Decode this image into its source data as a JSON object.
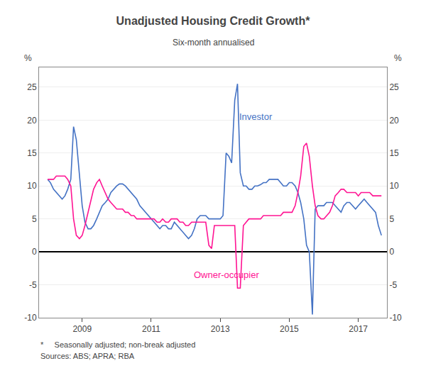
{
  "chart_data": {
    "type": "line",
    "title": "Unadjusted Housing Credit Growth*",
    "subtitle": "Six-month annualised",
    "ylabel": "%",
    "y2label": "%",
    "footnotes": [
      "*     Seasonally adjusted; non-break adjusted",
      "Sources: ABS; APRA; RBA"
    ],
    "xlim": [
      2007.75,
      2017.83
    ],
    "xticks": [
      2009,
      2011,
      2013,
      2015,
      2017
    ],
    "ylim": [
      -10,
      28
    ],
    "yticks": [
      -10,
      -5,
      0,
      5,
      10,
      15,
      20,
      25
    ],
    "y2lim": [
      -10,
      28
    ],
    "y2ticks": [
      -10,
      -5,
      0,
      5,
      10,
      15,
      20,
      25
    ],
    "grid": true,
    "x": [
      2008.0,
      2008.08,
      2008.17,
      2008.25,
      2008.33,
      2008.42,
      2008.5,
      2008.58,
      2008.67,
      2008.75,
      2008.83,
      2008.92,
      2009.0,
      2009.08,
      2009.17,
      2009.25,
      2009.33,
      2009.42,
      2009.5,
      2009.58,
      2009.67,
      2009.75,
      2009.83,
      2009.92,
      2010.0,
      2010.08,
      2010.17,
      2010.25,
      2010.33,
      2010.42,
      2010.5,
      2010.58,
      2010.67,
      2010.75,
      2010.83,
      2010.92,
      2011.0,
      2011.08,
      2011.17,
      2011.25,
      2011.33,
      2011.42,
      2011.5,
      2011.58,
      2011.67,
      2011.75,
      2011.83,
      2011.92,
      2012.0,
      2012.08,
      2012.17,
      2012.25,
      2012.33,
      2012.42,
      2012.5,
      2012.58,
      2012.67,
      2012.75,
      2012.83,
      2012.92,
      2013.0,
      2013.08,
      2013.17,
      2013.25,
      2013.33,
      2013.42,
      2013.5,
      2013.58,
      2013.67,
      2013.75,
      2013.83,
      2013.92,
      2014.0,
      2014.08,
      2014.17,
      2014.25,
      2014.33,
      2014.42,
      2014.5,
      2014.58,
      2014.67,
      2014.75,
      2014.83,
      2014.92,
      2015.0,
      2015.08,
      2015.17,
      2015.25,
      2015.33,
      2015.42,
      2015.5,
      2015.58,
      2015.67,
      2015.75,
      2015.83,
      2015.92,
      2016.0,
      2016.08,
      2016.17,
      2016.25,
      2016.33,
      2016.42,
      2016.5,
      2016.58,
      2016.67,
      2016.75,
      2016.83,
      2016.92,
      2017.0,
      2017.08,
      2017.17,
      2017.25,
      2017.33,
      2017.42,
      2017.5,
      2017.58,
      2017.67
    ],
    "series": [
      {
        "color": "#4472C4",
        "values": [
          11.0,
          10.5,
          9.5,
          9.0,
          8.5,
          8.0,
          8.5,
          9.5,
          11.0,
          19.0,
          17.0,
          12.0,
          7.0,
          4.5,
          3.5,
          3.5,
          4.0,
          5.0,
          6.0,
          7.0,
          7.5,
          8.0,
          9.0,
          9.5,
          10.0,
          10.3,
          10.3,
          10.0,
          9.5,
          9.0,
          8.5,
          8.0,
          7.0,
          6.5,
          6.0,
          5.5,
          5.0,
          4.5,
          4.0,
          3.5,
          4.0,
          4.0,
          3.5,
          3.5,
          4.5,
          4.0,
          3.5,
          3.0,
          2.5,
          2.0,
          2.5,
          3.5,
          5.0,
          5.5,
          5.5,
          5.5,
          5.0,
          5.0,
          5.0,
          5.0,
          5.0,
          5.5,
          15.0,
          14.5,
          13.5,
          23.0,
          25.5,
          12.0,
          10.0,
          10.0,
          9.5,
          9.5,
          10.0,
          10.0,
          10.2,
          10.5,
          10.5,
          11.0,
          11.0,
          11.0,
          11.0,
          10.5,
          10.0,
          10.0,
          10.5,
          10.5,
          10.0,
          9.0,
          7.5,
          5.0,
          1.0,
          0.0,
          -9.5,
          6.5,
          7.0,
          7.0,
          7.0,
          7.5,
          7.5,
          7.5,
          7.0,
          6.5,
          6.0,
          7.0,
          7.5,
          7.5,
          7.0,
          6.5,
          7.0,
          7.5,
          8.0,
          7.5,
          7.0,
          6.5,
          6.0,
          4.0,
          2.5
        ]
      },
      {
        "color": "#FF1493",
        "values": [
          11.0,
          11.0,
          11.0,
          11.5,
          11.5,
          11.5,
          11.5,
          11.0,
          10.0,
          5.0,
          2.5,
          2.0,
          2.5,
          4.0,
          6.0,
          8.0,
          9.5,
          10.5,
          11.0,
          10.0,
          9.0,
          8.0,
          7.5,
          7.0,
          6.5,
          6.5,
          6.5,
          6.0,
          6.0,
          5.5,
          5.5,
          5.0,
          5.0,
          5.0,
          5.0,
          5.0,
          5.0,
          5.0,
          4.5,
          4.5,
          5.0,
          4.5,
          4.5,
          5.0,
          5.0,
          5.0,
          4.5,
          4.5,
          4.0,
          4.0,
          4.5,
          4.5,
          4.5,
          4.5,
          4.5,
          4.5,
          1.0,
          0.5,
          4.0,
          4.0,
          4.0,
          4.0,
          4.0,
          4.0,
          4.0,
          4.0,
          -5.5,
          -5.5,
          4.0,
          4.5,
          5.0,
          5.0,
          5.0,
          5.0,
          5.0,
          5.5,
          5.5,
          5.5,
          5.5,
          5.5,
          5.5,
          5.5,
          6.0,
          6.0,
          6.0,
          6.0,
          7.0,
          9.0,
          11.5,
          16.0,
          16.5,
          14.5,
          10.0,
          7.0,
          5.5,
          5.0,
          5.0,
          5.5,
          6.0,
          7.0,
          8.5,
          9.0,
          9.5,
          9.5,
          9.0,
          9.0,
          9.0,
          9.0,
          8.5,
          9.0,
          9.0,
          9.0,
          9.0,
          8.5,
          8.5,
          8.5,
          8.5
        ]
      }
    ],
    "annotations": [
      {
        "text": "Investor",
        "x": 2013.5,
        "y": 20.5,
        "color": "#4472C4"
      },
      {
        "text": "Owner-occupier",
        "x": 2012.2,
        "y": -3.5,
        "color": "#FF1493"
      }
    ]
  }
}
